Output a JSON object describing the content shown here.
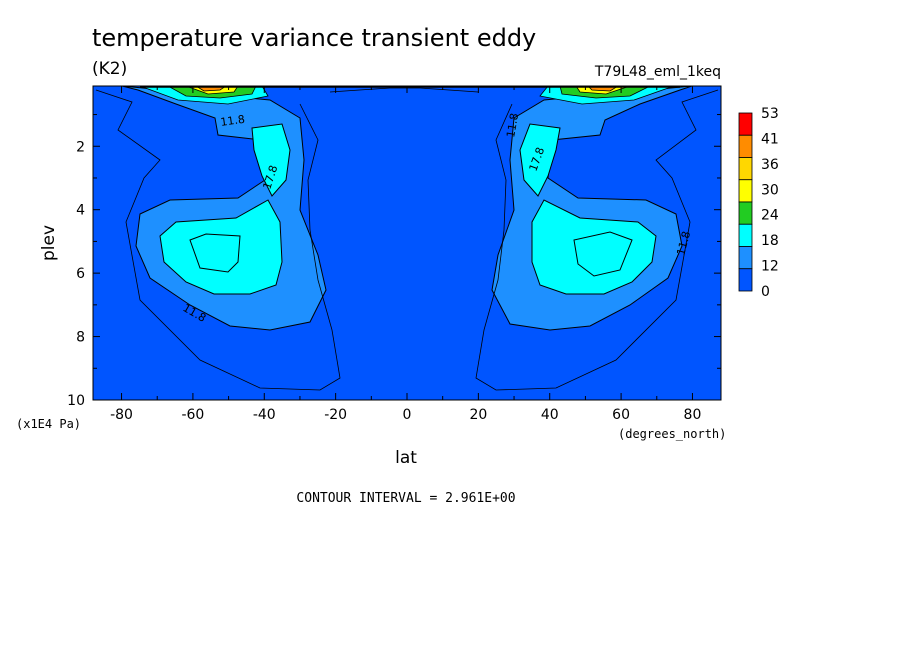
{
  "chart_data": {
    "type": "contour",
    "title": "temperature variance transient eddy",
    "units": "(K2)",
    "run_label": "T79L48_eml_1keq",
    "xlabel": "lat",
    "x_units": "(degrees_north)",
    "ylabel": "plev",
    "y_units": "(x1E4 Pa)",
    "xlim": [
      -88,
      88
    ],
    "ylim": [
      0.1,
      10
    ],
    "y_inverted": true,
    "x_ticks": [
      -80,
      -60,
      -40,
      -20,
      0,
      20,
      40,
      60,
      80
    ],
    "y_ticks": [
      2,
      4,
      6,
      8,
      10
    ],
    "contour_interval_text": "CONTOUR INTERVAL = 2.961E+00",
    "contour_line_labels": [
      "11.8",
      "17.8"
    ],
    "colorbar": {
      "labels": [
        "53",
        "41",
        "36",
        "30",
        "24",
        "18",
        "12",
        "0"
      ],
      "colors": [
        "#ff0000",
        "#ff8c00",
        "#ffd700",
        "#ffff00",
        "#22cc22",
        "#00ffff",
        "#1e90ff",
        "#0055ff"
      ]
    },
    "features": [
      {
        "name": "southern mid-latitude lower-troposphere maximum",
        "lat": -55,
        "plev": 5.3,
        "value_range": "18-24"
      },
      {
        "name": "southern upper-level maximum",
        "lat": -42,
        "plev": 1.9,
        "value_range": "18-24"
      },
      {
        "name": "northern mid-latitude lower-troposphere maximum",
        "lat": 55,
        "plev": 5.3,
        "value_range": "18-24"
      },
      {
        "name": "northern upper-level maximum",
        "lat": 40,
        "plev": 1.9,
        "value_range": "18-24"
      },
      {
        "name": "southern stratospheric maximum",
        "lat": -55,
        "plev": 0.1,
        "value_range": "41-53"
      },
      {
        "name": "northern stratospheric maximum",
        "lat": 55,
        "plev": 0.1,
        "value_range": "41-53"
      }
    ]
  }
}
